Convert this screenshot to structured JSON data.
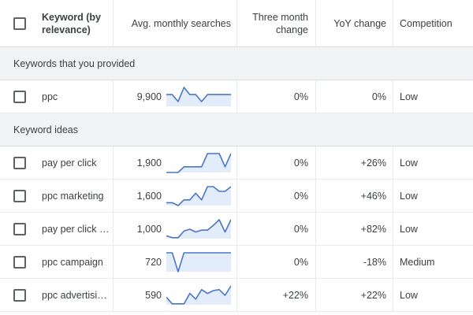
{
  "header": {
    "keyword": "Keyword (by relevance)",
    "searches": "Avg. monthly searches",
    "three_month": "Three month change",
    "yoy": "YoY change",
    "competition": "Competition"
  },
  "sections": {
    "provided": "Keywords that you provided",
    "ideas": "Keyword ideas"
  },
  "colors": {
    "spark_line": "#4a76c8",
    "spark_fill": "#e3ecfb"
  },
  "rows": [
    {
      "keyword": "ppc",
      "searches": "9,900",
      "three_month": "0%",
      "yoy": "0%",
      "competition": "Low",
      "trend": [
        0.62,
        0.62,
        0.25,
        1.0,
        0.62,
        0.62,
        0.25,
        0.62,
        0.62,
        0.62,
        0.62,
        0.62
      ]
    },
    {
      "keyword": "pay per click",
      "searches": "1,900",
      "three_month": "0%",
      "yoy": "+26%",
      "competition": "Low",
      "trend": [
        0.0,
        0.0,
        0.0,
        0.3,
        0.3,
        0.3,
        0.3,
        1.0,
        1.0,
        1.0,
        0.3,
        1.0
      ]
    },
    {
      "keyword": "ppc marketing",
      "searches": "1,600",
      "three_month": "0%",
      "yoy": "+46%",
      "competition": "Low",
      "trend": [
        0.15,
        0.15,
        0.0,
        0.3,
        0.3,
        0.65,
        0.3,
        1.0,
        1.0,
        0.75,
        0.75,
        1.0
      ]
    },
    {
      "keyword": "pay per click …",
      "searches": "1,000",
      "three_month": "0%",
      "yoy": "+82%",
      "competition": "Low",
      "trend": [
        0.15,
        0.05,
        0.05,
        0.4,
        0.5,
        0.35,
        0.45,
        0.45,
        0.7,
        1.0,
        0.35,
        1.0
      ]
    },
    {
      "keyword": "ppc campaign",
      "searches": "720",
      "three_month": "0%",
      "yoy": "-18%",
      "competition": "Medium",
      "trend": [
        1.0,
        1.0,
        0.0,
        1.0,
        1.0,
        1.0,
        1.0,
        1.0,
        1.0,
        1.0,
        1.0,
        1.0
      ]
    },
    {
      "keyword": "ppc advertisi…",
      "searches": "590",
      "three_month": "+22%",
      "yoy": "+22%",
      "competition": "Low",
      "trend": [
        0.4,
        0.05,
        0.05,
        0.05,
        0.6,
        0.3,
        0.8,
        0.6,
        0.75,
        0.8,
        0.5,
        1.0
      ]
    }
  ]
}
